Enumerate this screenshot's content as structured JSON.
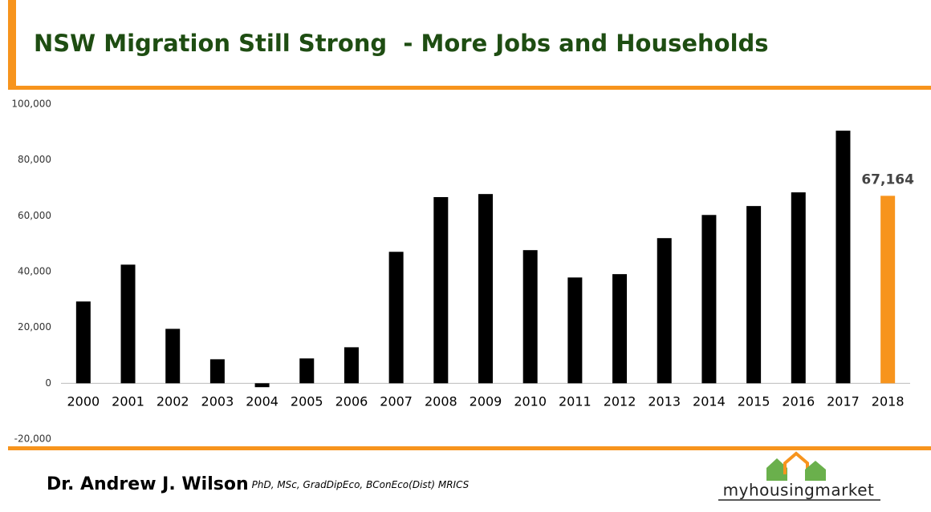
{
  "chart_data": {
    "type": "bar",
    "title": "NSW Migration Still Strong  - More Jobs and Households",
    "categories": [
      "2000",
      "2001",
      "2002",
      "2003",
      "2004",
      "2005",
      "2006",
      "2007",
      "2008",
      "2009",
      "2010",
      "2011",
      "2012",
      "2013",
      "2014",
      "2015",
      "2016",
      "2017",
      "2018"
    ],
    "values": [
      29300,
      42500,
      19500,
      8600,
      -1400,
      8900,
      12900,
      47100,
      66700,
      67800,
      47700,
      37900,
      39100,
      52000,
      60300,
      63500,
      68400,
      90500,
      67164
    ],
    "value_labels": [
      null,
      null,
      null,
      null,
      null,
      null,
      null,
      null,
      null,
      null,
      null,
      null,
      null,
      null,
      null,
      null,
      null,
      null,
      "67,164"
    ],
    "colors": [
      "#000000",
      "#000000",
      "#000000",
      "#000000",
      "#000000",
      "#000000",
      "#000000",
      "#000000",
      "#000000",
      "#000000",
      "#000000",
      "#000000",
      "#000000",
      "#000000",
      "#000000",
      "#000000",
      "#000000",
      "#000000",
      "#f7941d"
    ],
    "ylim": [
      -20000,
      100000
    ],
    "yticks": [
      {
        "value": -20000,
        "label": "-20,000"
      },
      0,
      {
        "value": 20000,
        "label": "20,000"
      },
      {
        "value": 40000,
        "label": "40,000"
      },
      {
        "value": 60000,
        "label": "60,000"
      },
      {
        "value": 80000,
        "label": "80,000"
      },
      {
        "value": 100000,
        "label": "100,000"
      }
    ],
    "grid": false
  },
  "footer": {
    "author": "Dr. Andrew J. Wilson",
    "credentials": "PhD, MSc, GradDipEco, BConEco(Dist) MRICS"
  },
  "logo": {
    "text": "myhousingmarket"
  }
}
